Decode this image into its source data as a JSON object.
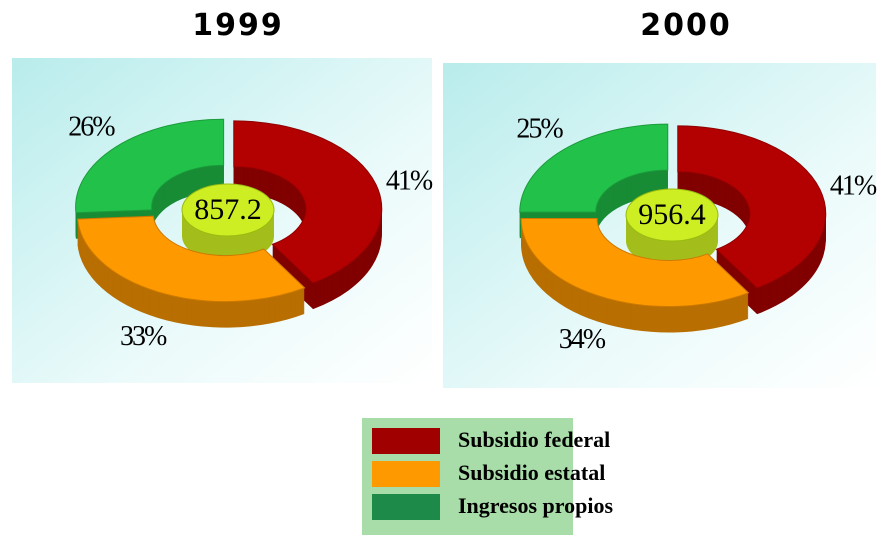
{
  "chart_data": [
    {
      "type": "donut3d",
      "title": "1999",
      "total": 857.2,
      "categories": [
        "Subsidio federal",
        "Subsidio estatal",
        "Ingresos propios"
      ],
      "values": [
        41,
        33,
        26
      ],
      "value_labels": [
        "41%",
        "33%",
        "26%"
      ],
      "colors": [
        "#b30000",
        "#ff9900",
        "#22c24a"
      ],
      "center_color": "#ccee22"
    },
    {
      "type": "donut3d",
      "title": "2000",
      "total": 956.4,
      "categories": [
        "Subsidio federal",
        "Subsidio estatal",
        "Ingresos propios"
      ],
      "values": [
        41,
        34,
        25
      ],
      "value_labels": [
        "41%",
        "34%",
        "25%"
      ],
      "colors": [
        "#b30000",
        "#ff9900",
        "#22c24a"
      ],
      "center_color": "#ccee22"
    }
  ]
}
